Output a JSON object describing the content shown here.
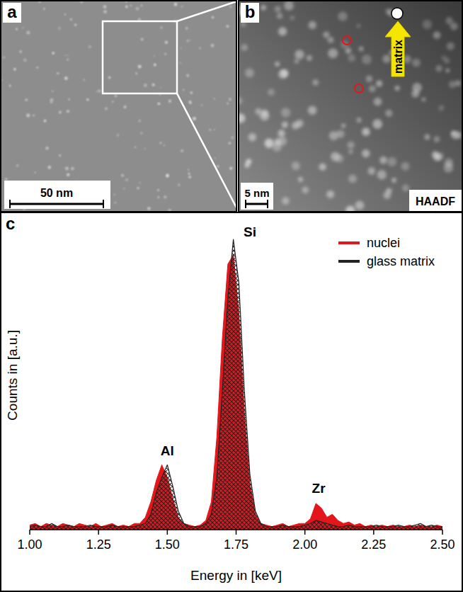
{
  "panels": [
    {
      "letter": "a",
      "scale_bar": "50 nm"
    },
    {
      "letter": "b",
      "scale_bar": "5 nm",
      "label": "HAADF",
      "arrow_label": "matrix"
    },
    {
      "letter": "c"
    }
  ],
  "chart_data": {
    "type": "area",
    "x_label": "Energy in [keV]",
    "y_label": "Counts in [a.u.]",
    "xlim": [
      1.0,
      2.5
    ],
    "xticks": [
      {
        "value": 1.0,
        "label": "1.00"
      },
      {
        "value": 1.25,
        "label": "1.25"
      },
      {
        "value": 1.5,
        "label": "1.50"
      },
      {
        "value": 1.75,
        "label": "1.75"
      },
      {
        "value": 2.0,
        "label": "2.00"
      },
      {
        "value": 2.25,
        "label": "2.25"
      },
      {
        "value": 2.5,
        "label": "2.50"
      }
    ],
    "ylim": [
      0,
      1
    ],
    "tick_labels": "x",
    "legend": "top-right",
    "x": [
      1,
      1.02,
      1.04,
      1.06,
      1.08,
      1.1,
      1.12,
      1.14,
      1.16,
      1.18,
      1.2,
      1.22,
      1.24,
      1.26,
      1.28,
      1.3,
      1.32,
      1.34,
      1.36,
      1.38,
      1.4,
      1.42,
      1.44,
      1.46,
      1.48,
      1.5,
      1.52,
      1.54,
      1.56,
      1.58,
      1.6,
      1.62,
      1.64,
      1.66,
      1.68,
      1.7,
      1.72,
      1.74,
      1.76,
      1.78,
      1.8,
      1.82,
      1.84,
      1.86,
      1.88,
      1.9,
      1.92,
      1.94,
      1.96,
      1.98,
      2,
      2.02,
      2.04,
      2.06,
      2.08,
      2.1,
      2.12,
      2.14,
      2.16,
      2.18,
      2.2,
      2.22,
      2.24,
      2.26,
      2.28,
      2.3,
      2.32,
      2.34,
      2.36,
      2.38,
      2.4,
      2.42,
      2.44,
      2.46,
      2.48,
      2.5
    ],
    "series": [
      {
        "name": "nuclei",
        "color": "#e3161c",
        "values": [
          0.015,
          0.02,
          0.01,
          0.02,
          0.015,
          0.01,
          0.02,
          0.015,
          0.01,
          0.02,
          0.015,
          0.01,
          0.02,
          0.01,
          0.015,
          0.02,
          0.01,
          0.015,
          0.01,
          0.02,
          0.02,
          0.04,
          0.09,
          0.16,
          0.21,
          0.17,
          0.1,
          0.04,
          0.02,
          0.015,
          0.01,
          0.015,
          0.03,
          0.09,
          0.3,
          0.62,
          0.86,
          0.89,
          0.7,
          0.38,
          0.15,
          0.05,
          0.02,
          0.015,
          0.01,
          0.015,
          0.02,
          0.01,
          0.015,
          0.02,
          0.02,
          0.035,
          0.085,
          0.07,
          0.04,
          0.05,
          0.03,
          0.02,
          0.025,
          0.015,
          0.02,
          0.01,
          0.015,
          0.01,
          0.015,
          0.01,
          0.015,
          0.01,
          0.01,
          0.015,
          0.01,
          0.015,
          0.01,
          0.01,
          0.015,
          0.01
        ]
      },
      {
        "name": "glass matrix",
        "color": "#222222",
        "values": [
          0.01,
          0.015,
          0.01,
          0.01,
          0.02,
          0.01,
          0.01,
          0.015,
          0.01,
          0.01,
          0.01,
          0.015,
          0.01,
          0.01,
          0.01,
          0.015,
          0.01,
          0.01,
          0.01,
          0.01,
          0.015,
          0.02,
          0.05,
          0.12,
          0.17,
          0.21,
          0.14,
          0.06,
          0.02,
          0.01,
          0.01,
          0.01,
          0.02,
          0.05,
          0.17,
          0.45,
          0.75,
          0.94,
          0.8,
          0.45,
          0.18,
          0.06,
          0.02,
          0.01,
          0.01,
          0.01,
          0.015,
          0.01,
          0.01,
          0.01,
          0.015,
          0.02,
          0.03,
          0.025,
          0.02,
          0.015,
          0.01,
          0.01,
          0.015,
          0.01,
          0.01,
          0.01,
          0.01,
          0.015,
          0.01,
          0.01,
          0.01,
          0.015,
          0.01,
          0.01,
          0.015,
          0.02,
          0.01,
          0.015,
          0.01,
          0.01
        ]
      }
    ],
    "annotations": [
      {
        "text": "Al",
        "x": 1.5,
        "y": 0.24
      },
      {
        "text": "Si",
        "x": 1.8,
        "y": 0.95
      },
      {
        "text": "Zr",
        "x": 2.05,
        "y": 0.12
      }
    ]
  }
}
